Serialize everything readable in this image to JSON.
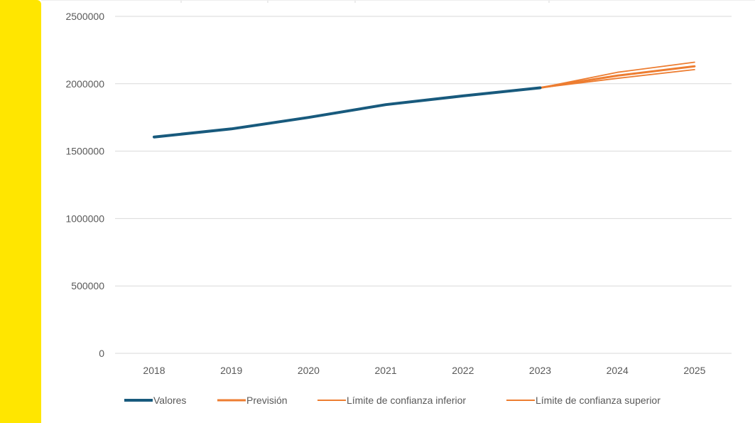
{
  "colors": {
    "side_bar": "#FFE600",
    "valores": "#185A7D",
    "prevision": "#ED7D31",
    "limite_inferior": "#ED7D31",
    "limite_superior": "#ED7D31",
    "gridline": "#D9D9D9",
    "axis_text": "#595959"
  },
  "chart_data": {
    "type": "line",
    "title": "",
    "xlabel": "",
    "ylabel": "",
    "categories": [
      "2018",
      "2019",
      "2020",
      "2021",
      "2022",
      "2023",
      "2024",
      "2025"
    ],
    "y_ticks": [
      "0",
      "500000",
      "1000000",
      "1500000",
      "2000000",
      "2500000"
    ],
    "ylim": [
      0,
      2500000
    ],
    "grid": true,
    "legend_position": "bottom",
    "series": [
      {
        "name": "Valores",
        "values": [
          1605000,
          1665000,
          1750000,
          1845000,
          1910000,
          1970000,
          null,
          null
        ]
      },
      {
        "name": "Previsión",
        "values": [
          null,
          null,
          null,
          null,
          null,
          1970000,
          2060000,
          2130000
        ]
      },
      {
        "name": "Límite de confianza inferior",
        "values": [
          null,
          null,
          null,
          null,
          null,
          1970000,
          2040000,
          2105000
        ]
      },
      {
        "name": "Límite de confianza superior",
        "values": [
          null,
          null,
          null,
          null,
          null,
          1970000,
          2085000,
          2160000
        ]
      }
    ]
  }
}
